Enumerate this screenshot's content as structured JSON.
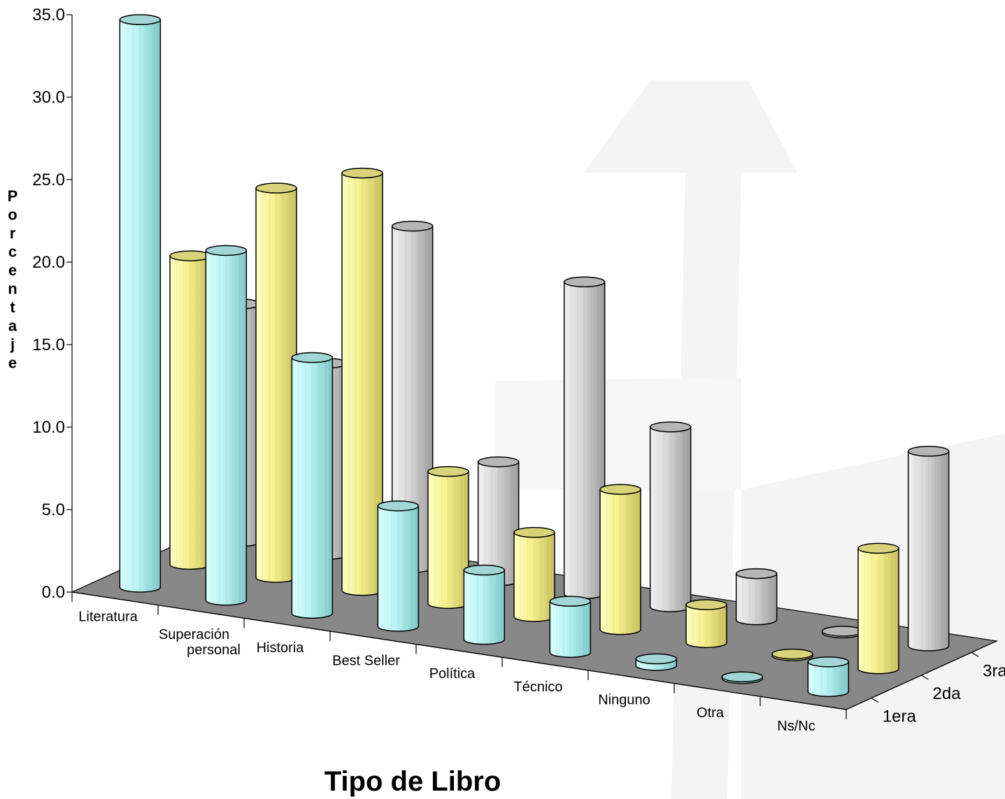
{
  "chart_data": {
    "type": "bar",
    "style": "3d-cylinder",
    "xlabel": "Tipo de Libro",
    "ylabel": "Porcentaje",
    "ylim": [
      0,
      35
    ],
    "yticks": [
      "0.0",
      "5.0",
      "10.0",
      "15.0",
      "20.0",
      "25.0",
      "30.0",
      "35.0"
    ],
    "categories": [
      "Literatura",
      "Superación personal",
      "Historia",
      "Best Seller",
      "Política",
      "Técnico",
      "Ninguno",
      "Otra",
      "Ns/Nc"
    ],
    "category_lines": [
      [
        "Literatura"
      ],
      [
        "Superación",
        "personal"
      ],
      [
        "Historia"
      ],
      [
        "Best Seller"
      ],
      [
        "Política"
      ],
      [
        "Técnico"
      ],
      [
        "Ninguno"
      ],
      [
        "Otra"
      ],
      [
        "Ns/Nc"
      ]
    ],
    "series": [
      {
        "name": "1era",
        "color": "#b8f2f2",
        "values": [
          34.4,
          21.2,
          15.5,
          7.3,
          4.2,
          3.1,
          0.4,
          0.1,
          1.8
        ]
      },
      {
        "name": "2da",
        "color": "#f5f08c",
        "values": [
          18.7,
          23.6,
          25.3,
          8.0,
          5.1,
          8.5,
          2.3,
          0.1,
          7.3
        ]
      },
      {
        "name": "3ra",
        "color": "#cfcfcf",
        "values": [
          14.4,
          11.6,
          20.7,
          7.2,
          18.9,
          10.9,
          2.8,
          0.1,
          11.8
        ]
      }
    ],
    "grid": false,
    "legend": "depth-axis"
  }
}
